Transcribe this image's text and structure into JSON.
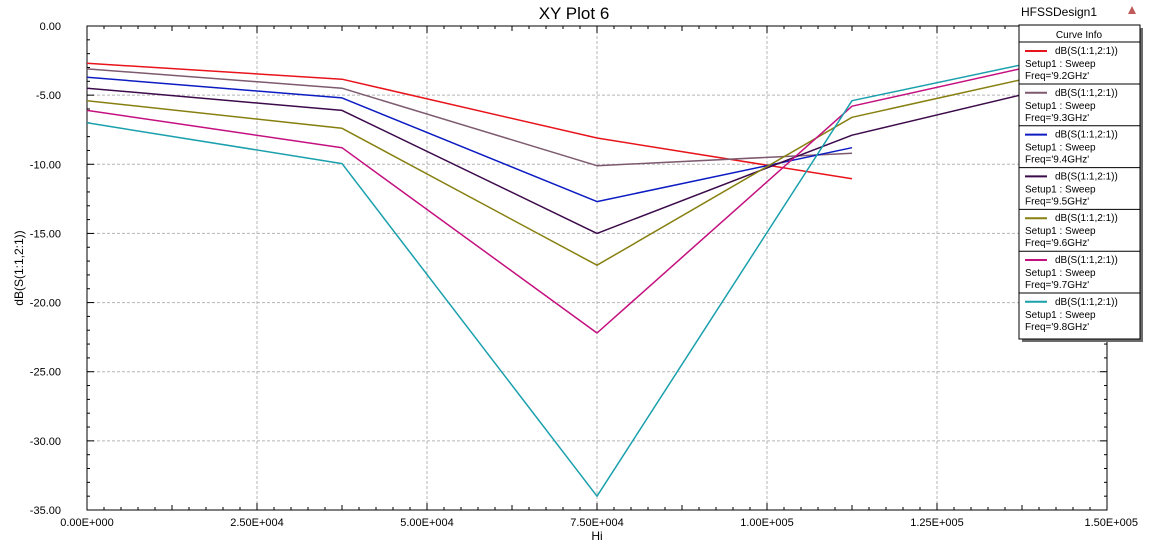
{
  "window": {
    "design_name": "HFSSDesign1"
  },
  "chart_data": {
    "type": "line",
    "title": "XY Plot 6",
    "xlabel": "Hi",
    "ylabel": "dB(S(1:1,2:1))",
    "xlim": [
      0,
      150000
    ],
    "ylim": [
      -35,
      0
    ],
    "grid": true,
    "legend_position": "top-right",
    "legend_title": "Curve Info",
    "x_ticks": [
      "0.00E+000",
      "2.50E+004",
      "5.00E+004",
      "7.50E+004",
      "1.00E+005",
      "1.25E+005",
      "1.50E+005"
    ],
    "y_ticks": [
      "0.00",
      "-5.00",
      "-10.00",
      "-15.00",
      "-20.00",
      "-25.00",
      "-30.00",
      "-35.00"
    ],
    "x": [
      0,
      37500,
      75000,
      112500,
      150000
    ],
    "series": [
      {
        "name": "dB(S(1:1,2:1))",
        "setup": "Setup1 : Sweep",
        "freq": "Freq='9.2GHz'",
        "color": "#e8141b",
        "values": [
          -2.7,
          -3.85,
          -8.1,
          -11.05,
          null
        ]
      },
      {
        "name": "dB(S(1:1,2:1))",
        "setup": "Setup1 : Sweep",
        "freq": "Freq='9.3GHz'",
        "color": "#7d5a6f",
        "values": [
          -3.1,
          -4.5,
          -10.1,
          -9.2,
          null
        ]
      },
      {
        "name": "dB(S(1:1,2:1))",
        "setup": "Setup1 : Sweep",
        "freq": "Freq='9.4GHz'",
        "color": "#0c1cc2",
        "values": [
          -3.7,
          -5.2,
          -12.7,
          -8.8,
          null
        ]
      },
      {
        "name": "dB(S(1:1,2:1))",
        "setup": "Setup1 : Sweep",
        "freq": "Freq='9.5GHz'",
        "color": "#3c0a4a",
        "values": [
          -4.5,
          -6.1,
          -15.0,
          -7.9,
          -3.5
        ]
      },
      {
        "name": "dB(S(1:1,2:1))",
        "setup": "Setup1 : Sweep",
        "freq": "Freq='9.6GHz'",
        "color": "#878010",
        "values": [
          -5.4,
          -7.4,
          -17.3,
          -6.6,
          -2.5
        ]
      },
      {
        "name": "dB(S(1:1,2:1))",
        "setup": "Setup1 : Sweep",
        "freq": "Freq='9.7GHz'",
        "color": "#c4107f",
        "values": [
          -6.1,
          -8.8,
          -22.2,
          -5.8,
          -1.7
        ]
      },
      {
        "name": "dB(S(1:1,2:1))",
        "setup": "Setup1 : Sweep",
        "freq": "Freq='9.8GHz'",
        "color": "#1aa0ad",
        "values": [
          -7.0,
          -9.95,
          -34.0,
          -5.4,
          -1.5
        ]
      }
    ]
  }
}
